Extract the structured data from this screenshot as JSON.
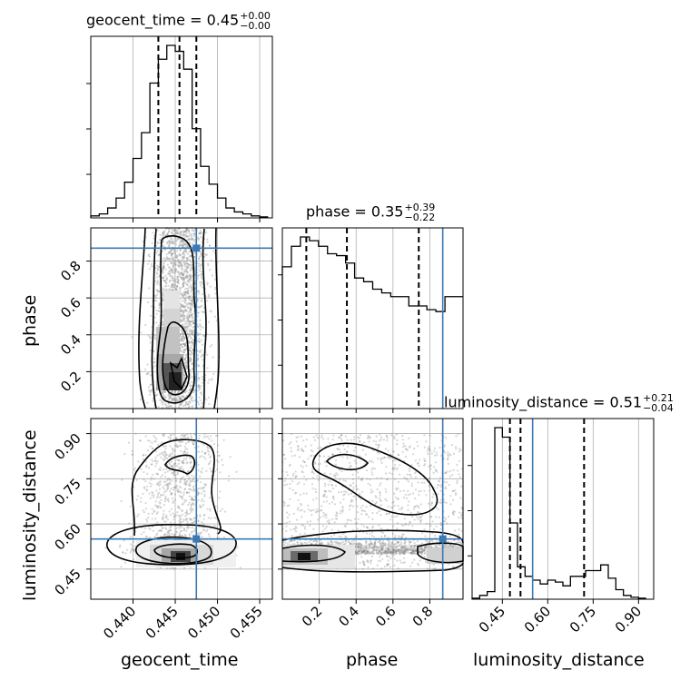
{
  "chart_data": {
    "type": "corner",
    "parameters": [
      "geocent_time",
      "phase",
      "luminosity_distance"
    ],
    "injection": {
      "geocent_time": 0.4475,
      "phase": 0.87,
      "luminosity_distance": 0.55
    },
    "colors": {
      "injection": "#3b78b5",
      "hist": "#000000",
      "grid": "#b0b0b0",
      "points": "#8a8a8a"
    },
    "grid": true,
    "panels": {
      "geocent_time": {
        "title": "geocent_time = 0.45",
        "title_sup": "+0.00",
        "title_sub": "−0.00",
        "xlim": [
          0.435,
          0.4565
        ],
        "xticks": [
          "0.440",
          "0.445",
          "0.450",
          "0.455"
        ],
        "xtick_values": [
          0.44,
          0.445,
          0.45,
          0.455
        ],
        "quantiles": [
          0.443,
          0.4455,
          0.4475
        ],
        "hist_edges_start": 0.435,
        "hist_bin": 0.001,
        "hist_counts": [
          0.01,
          0.02,
          0.05,
          0.1,
          0.18,
          0.3,
          0.43,
          0.68,
          0.8,
          0.87,
          0.84,
          0.75,
          0.45,
          0.26,
          0.17,
          0.1,
          0.05,
          0.03,
          0.02,
          0.01,
          0.005
        ]
      },
      "phase": {
        "title": "phase = 0.35",
        "title_sup": "+0.39",
        "title_sub": "−0.22",
        "xlim": [
          0.0,
          0.98
        ],
        "xticks": [
          "0.2",
          "0.4",
          "0.6",
          "0.8"
        ],
        "xtick_values": [
          0.2,
          0.4,
          0.6,
          0.8
        ],
        "ylim_2d": [
          0.0,
          0.98
        ],
        "yticks_2d": [
          "0.2",
          "0.4",
          "0.6",
          "0.8"
        ],
        "quantiles": [
          0.13,
          0.35,
          0.74
        ],
        "hist_edges_start": 0.0,
        "hist_bin": 0.049,
        "hist_counts": [
          0.76,
          0.87,
          0.92,
          0.9,
          0.87,
          0.83,
          0.82,
          0.78,
          0.7,
          0.68,
          0.64,
          0.62,
          0.6,
          0.6,
          0.55,
          0.55,
          0.53,
          0.52,
          0.6,
          0.6
        ]
      },
      "luminosity_distance": {
        "title": "luminosity_distance = 0.51",
        "title_sup": "+0.21",
        "title_sub": "−0.04",
        "xlim": [
          0.35,
          0.95
        ],
        "xticks": [
          "0.45",
          "0.60",
          "0.75",
          "0.90"
        ],
        "xtick_values": [
          0.45,
          0.6,
          0.75,
          0.9
        ],
        "ylim_2d": [
          0.35,
          0.95
        ],
        "yticks_2d": [
          "0.45",
          "0.60",
          "0.75",
          "0.90"
        ],
        "quantiles": [
          0.475,
          0.51,
          0.72
        ],
        "hist_edges_start": 0.35,
        "hist_bin": 0.025,
        "hist_counts": [
          0.005,
          0.02,
          0.04,
          0.9,
          0.85,
          0.4,
          0.17,
          0.12,
          0.1,
          0.08,
          0.1,
          0.09,
          0.07,
          0.12,
          0.12,
          0.15,
          0.15,
          0.18,
          0.11,
          0.05,
          0.02,
          0.01,
          0.005
        ]
      }
    },
    "xlabels": [
      "geocent_time",
      "phase",
      "luminosity_distance"
    ],
    "ylabels": [
      "phase",
      "luminosity_distance"
    ]
  }
}
